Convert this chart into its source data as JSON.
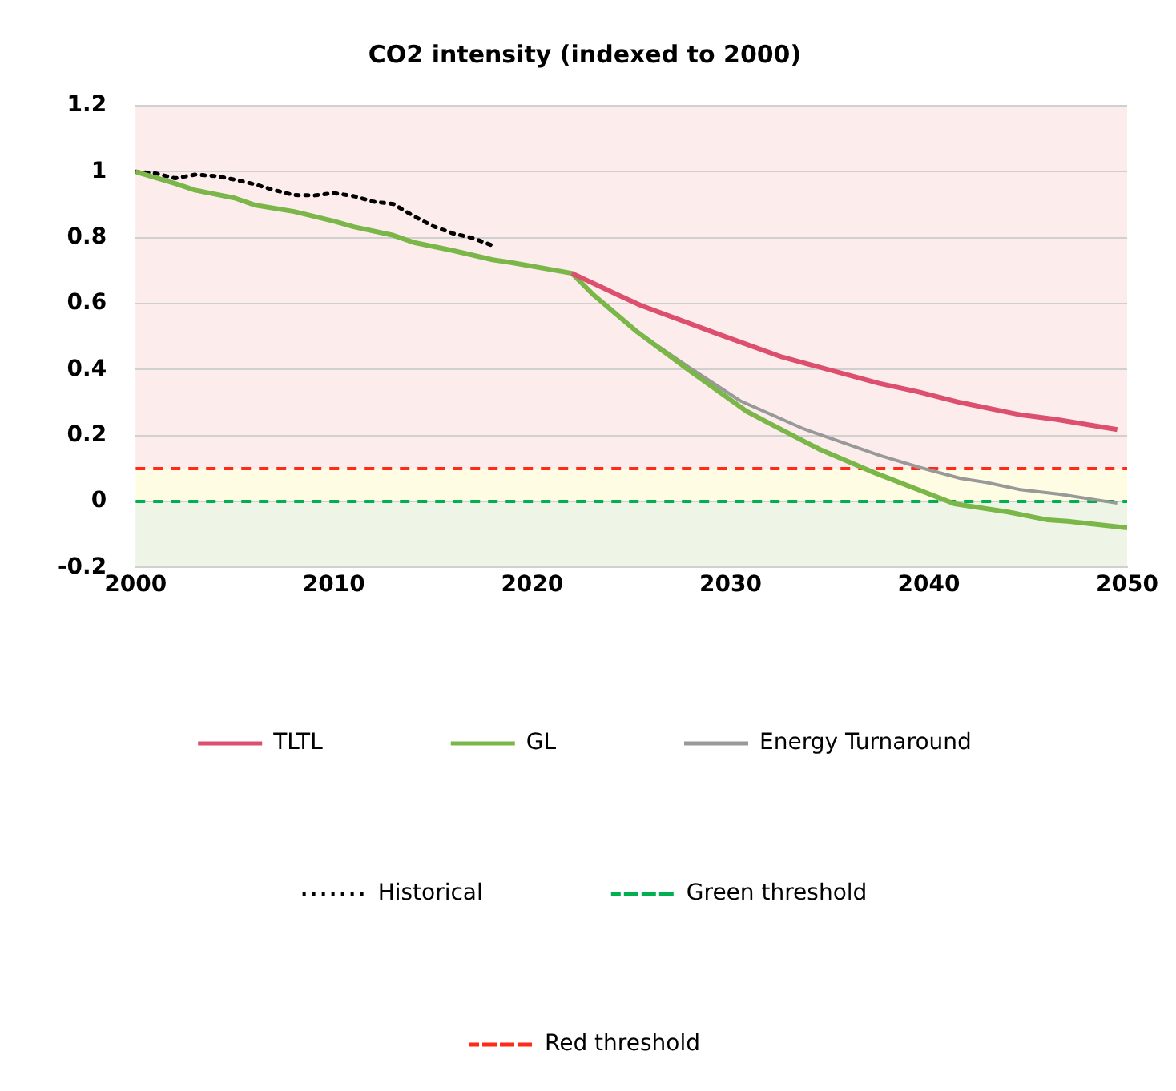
{
  "chart_data": {
    "type": "line",
    "title": "CO2 intensity (indexed to 2000)",
    "xlim": [
      2000,
      2050
    ],
    "xticks": [
      2000,
      2010,
      2020,
      2030,
      2040,
      2050
    ],
    "ylim": [
      -0.2,
      1.2
    ],
    "yticks": [
      -0.2,
      0,
      0.2,
      0.4,
      0.6,
      0.8,
      1,
      1.2
    ],
    "grid": "y",
    "legend": "bottom",
    "marker": "none",
    "bands": [
      {
        "axis": "y",
        "from": 0.1,
        "to": 1.2,
        "color": "#fcecec"
      },
      {
        "axis": "y",
        "from": 0,
        "to": 0.1,
        "color": "#fefde3"
      },
      {
        "axis": "y",
        "from": -0.2,
        "to": 0,
        "color": "#eef5e6"
      }
    ],
    "series": [
      {
        "name": "TLTL",
        "color": "#dc4f6e",
        "line_style": "solid",
        "x": [
          2022,
          2024.2,
          2025.5,
          2029.5,
          2032.6,
          2037.5,
          2039.5,
          2041.6,
          2044.6,
          2046.4,
          2049.5
        ],
        "values": [
          0.692,
          0.63,
          0.594,
          0.505,
          0.438,
          0.358,
          0.332,
          0.3,
          0.263,
          0.249,
          0.218
        ]
      },
      {
        "name": "GL",
        "color": "#7ab648",
        "line_style": "solid",
        "x": [
          2000,
          2002,
          2003,
          2005,
          2006,
          2008,
          2010,
          2011,
          2013,
          2014,
          2016,
          2018,
          2019,
          2022,
          2023.1,
          2025.3,
          2027.9,
          2030.8,
          2031.8,
          2034.5,
          2037.1,
          2041.3,
          2044,
          2046,
          2047,
          2050
        ],
        "values": [
          1,
          0.964,
          0.944,
          0.92,
          0.899,
          0.879,
          0.85,
          0.833,
          0.807,
          0.786,
          0.761,
          0.733,
          0.724,
          0.692,
          0.626,
          0.514,
          0.398,
          0.274,
          0.242,
          0.158,
          0.091,
          -0.007,
          -0.032,
          -0.056,
          -0.06,
          -0.08
        ]
      },
      {
        "name": "Energy Turnaround",
        "color": "#999999",
        "line_style": "solid",
        "x": [
          2022,
          2023.1,
          2025.3,
          2027.9,
          2030.5,
          2033.7,
          2037.5,
          2039.5,
          2041.6,
          2042.9,
          2044.6,
          2046.6,
          2049.5
        ],
        "values": [
          0.692,
          0.626,
          0.514,
          0.407,
          0.305,
          0.22,
          0.14,
          0.104,
          0.07,
          0.058,
          0.036,
          0.022,
          -0.005
        ]
      },
      {
        "name": "Historical",
        "color": "#000000",
        "line_style": "dotted",
        "x": [
          2000,
          2001,
          2002,
          2003,
          2004,
          2005,
          2006,
          2007,
          2008,
          2009,
          2010,
          2011,
          2012,
          2013,
          2014,
          2015,
          2016,
          2017,
          2018
        ],
        "values": [
          1,
          0.995,
          0.98,
          0.991,
          0.987,
          0.976,
          0.962,
          0.944,
          0.929,
          0.928,
          0.935,
          0.926,
          0.909,
          0.902,
          0.866,
          0.835,
          0.813,
          0.799,
          0.776
        ]
      },
      {
        "name": "Green threshold",
        "color": "#00b050",
        "line_style": "dashed",
        "x": [
          2000,
          2050
        ],
        "values": [
          0,
          0
        ]
      },
      {
        "name": "Red threshold",
        "color": "#ff2a1a",
        "line_style": "dashed",
        "x": [
          2000,
          2050
        ],
        "values": [
          0.1,
          0.1
        ]
      }
    ]
  }
}
